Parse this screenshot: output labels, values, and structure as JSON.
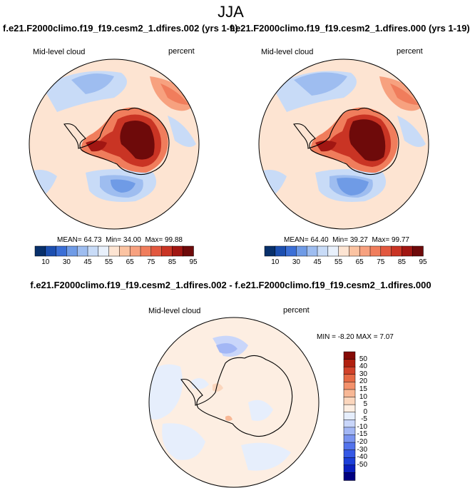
{
  "page_title": "JJA",
  "panels": [
    {
      "run_header": "f.e21.F2000climo.f19_f19.cesm2_1.dfires.002 (yrs 1-9)",
      "variable": "Mid-level cloud",
      "units": "percent",
      "stats": {
        "mean_label": "MEAN=",
        "mean": "64.73",
        "min_label": "Min=",
        "min": "34.00",
        "max_label": "Max=",
        "max": "99.88"
      }
    },
    {
      "run_header": "f.e21.F2000climo.f19_f19.cesm2_1.dfires.000 (yrs 1-19)",
      "variable": "Mid-level cloud",
      "units": "percent",
      "stats": {
        "mean_label": "MEAN=",
        "mean": "64.40",
        "min_label": "Min=",
        "min": "39.27",
        "max_label": "Max=",
        "max": "99.77"
      }
    }
  ],
  "diff_panel": {
    "title": "f.e21.F2000climo.f19_f19.cesm2_1.dfires.002 - f.e21.F2000climo.f19_f19.cesm2_1.dfires.000",
    "variable": "Mid-level cloud",
    "units": "percent",
    "minmax_text": "MIN =  -8.20 MAX =   7.07"
  },
  "colors": {
    "abs_scale": [
      "#08306b",
      "#1c4fb0",
      "#3b6fd6",
      "#6f9be6",
      "#9ebdf0",
      "#c8dbf7",
      "#e8f0fb",
      "#fde4d2",
      "#fbc3a2",
      "#f7a17f",
      "#f07d5c",
      "#e2583f",
      "#c93424",
      "#a11612",
      "#6e0a0a"
    ],
    "diff_scale": [
      "#000080",
      "#0a1fbf",
      "#1c3fd9",
      "#3558e6",
      "#5373ec",
      "#7a94f0",
      "#a3b7f5",
      "#c9d6fa",
      "#e6eefc",
      "#fdeee2",
      "#fbd6bd",
      "#f8b896",
      "#f3916c",
      "#e66a45",
      "#d1422a",
      "#b1200f",
      "#850a05"
    ],
    "land_outline": "#000000"
  },
  "chart_data": [
    {
      "type": "heatmap",
      "projection": "south-polar-stereographic",
      "title": "f.e21.F2000climo.f19_f19.cesm2_1.dfires.002 (yrs 1-9)",
      "variable": "Mid-level cloud",
      "units": "percent",
      "mean": 64.73,
      "min": 34.0,
      "max": 99.88,
      "colorbar": {
        "levels": [
          10,
          15,
          20,
          30,
          35,
          45,
          50,
          55,
          60,
          65,
          70,
          75,
          80,
          85,
          90,
          95
        ],
        "tick_labels": [
          "10",
          "30",
          "45",
          "55",
          "65",
          "75",
          "85",
          "95"
        ]
      }
    },
    {
      "type": "heatmap",
      "projection": "south-polar-stereographic",
      "title": "f.e21.F2000climo.f19_f19.cesm2_1.dfires.000 (yrs 1-19)",
      "variable": "Mid-level cloud",
      "units": "percent",
      "mean": 64.4,
      "min": 39.27,
      "max": 99.77,
      "colorbar": {
        "levels": [
          10,
          15,
          20,
          30,
          35,
          45,
          50,
          55,
          60,
          65,
          70,
          75,
          80,
          85,
          90,
          95
        ],
        "tick_labels": [
          "10",
          "30",
          "45",
          "55",
          "65",
          "75",
          "85",
          "95"
        ]
      }
    },
    {
      "type": "heatmap",
      "projection": "south-polar-stereographic",
      "title": "f.e21.F2000climo.f19_f19.cesm2_1.dfires.002 - f.e21.F2000climo.f19_f19.cesm2_1.dfires.000",
      "variable": "Mid-level cloud",
      "units": "percent",
      "min": -8.2,
      "max": 7.07,
      "colorbar": {
        "orientation": "vertical",
        "tick_labels": [
          "50",
          "40",
          "30",
          "20",
          "15",
          "10",
          "5",
          "0",
          "-5",
          "-10",
          "-15",
          "-20",
          "-30",
          "-40",
          "-50"
        ]
      }
    }
  ]
}
